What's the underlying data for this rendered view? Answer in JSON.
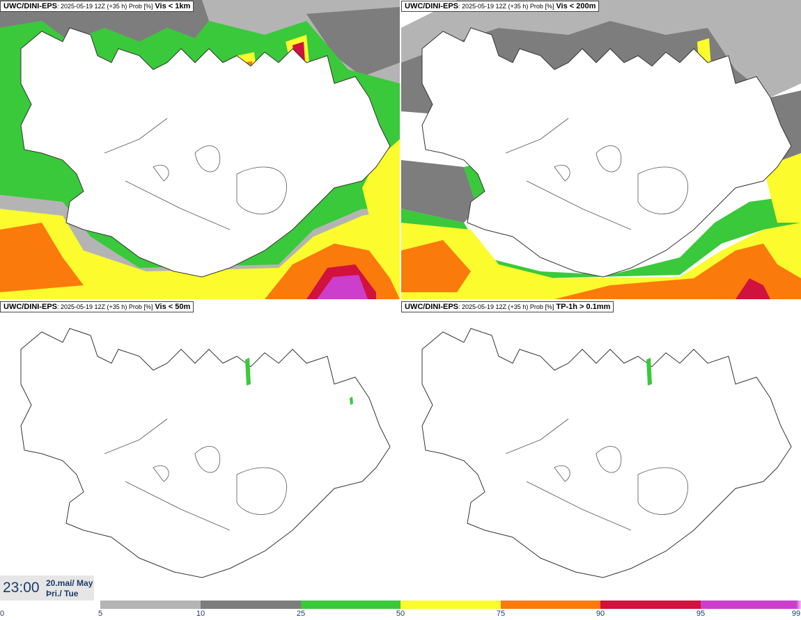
{
  "panels": [
    {
      "model": "UWC/DINI-EPS",
      "meta": ": 2025-05-19 12Z (+35 h) Prob [%]",
      "variable": "Vis < 1km"
    },
    {
      "model": "UWC/DINI-EPS",
      "meta": ": 2025-05-19 12Z (+35 h) Prob [%]",
      "variable": "Vis < 200m"
    },
    {
      "model": "UWC/DINI-EPS",
      "meta": ": 2025-05-19 12Z (+35 h) Prob [%]",
      "variable": "Vis < 50m"
    },
    {
      "model": "UWC/DINI-EPS",
      "meta": ": 2025-05-19 12Z (+35 h) Prob [%]",
      "variable": "TP-1h > 0.1mm"
    }
  ],
  "time_box": {
    "hour": "23:00",
    "date_line1": "20.maí/ May",
    "date_line2": "Þri./ Tue"
  },
  "colorbar": {
    "ticks": [
      "0",
      "5",
      "10",
      "25",
      "50",
      "75",
      "90",
      "95",
      "99"
    ],
    "segments": [
      {
        "from": "5",
        "to": "10",
        "color": "#b4b4b4"
      },
      {
        "from": "10",
        "to": "25",
        "color": "#7d7d7d"
      },
      {
        "from": "25",
        "to": "50",
        "color": "#39c93a"
      },
      {
        "from": "50",
        "to": "75",
        "color": "#fbfb2d"
      },
      {
        "from": "75",
        "to": "90",
        "color": "#fb7a0c"
      },
      {
        "from": "90",
        "to": "95",
        "color": "#d1113e"
      },
      {
        "from": "95",
        "to": "99",
        "color": "#cc3fcc"
      },
      {
        "from": "99",
        "to": "100",
        "color": "#f2c4f2"
      }
    ]
  },
  "colors": {
    "gray_light": "#b4b4b4",
    "gray_dark": "#7d7d7d",
    "green": "#39c93a",
    "yellow": "#fbfb2d",
    "orange": "#fb7a0c",
    "red": "#d1113e",
    "magenta": "#cc3fcc",
    "pink": "#f2c4f2",
    "coast": "#333333",
    "label_text": "#1b3a6b"
  },
  "map": {
    "region": "Iceland",
    "projection": "regional"
  }
}
